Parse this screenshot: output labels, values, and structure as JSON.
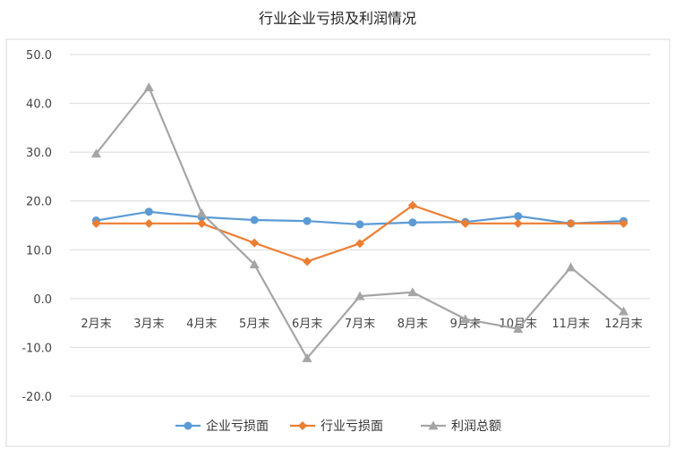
{
  "chart_data": {
    "type": "line",
    "title": "行业企业亏损及利润情况",
    "categories": [
      "2月末",
      "3月末",
      "4月末",
      "5月末",
      "6月末",
      "7月末",
      "8月末",
      "9月末",
      "10月末",
      "11月末",
      "12月末"
    ],
    "y_ticks": [
      "50.0",
      "40.0",
      "30.0",
      "20.0",
      "10.0",
      "0.0",
      "-10.0",
      "-20.0"
    ],
    "ylim": [
      -20,
      50
    ],
    "grid": true,
    "legend_position": "bottom",
    "series": [
      {
        "name": "企业亏损面",
        "color": "#5B9BD5",
        "marker": "circle",
        "values": [
          16.0,
          17.8,
          16.7,
          16.1,
          15.9,
          15.2,
          15.6,
          15.7,
          16.9,
          15.4,
          15.9
        ]
      },
      {
        "name": "行业亏损面",
        "color": "#ED7D31",
        "marker": "diamond",
        "values": [
          15.4,
          15.4,
          15.4,
          11.4,
          7.6,
          11.3,
          19.1,
          15.4,
          15.4,
          15.4,
          15.4
        ]
      },
      {
        "name": "利润总额",
        "color": "#A5A5A5",
        "marker": "triangle",
        "values": [
          29.7,
          43.3,
          17.5,
          7.0,
          -12.2,
          0.5,
          1.3,
          -4.2,
          -6.2,
          6.4,
          -2.6
        ]
      }
    ]
  }
}
